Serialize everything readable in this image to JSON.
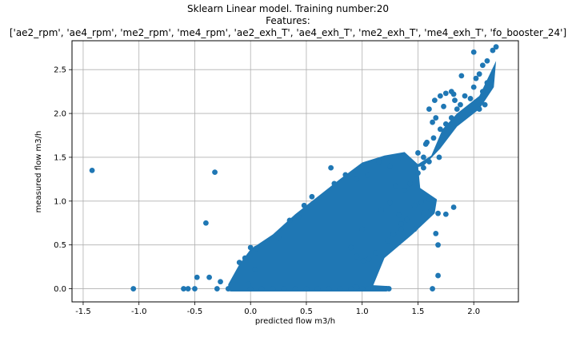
{
  "chart_data": {
    "type": "scatter",
    "title": "Sklearn Linear model. Training number:20",
    "subtitle": "Features:",
    "features_line": "['ae2_rpm', 'ae4_rpm', 'me2_rpm', 'me4_rpm', 'ae2_exh_T', 'ae4_exh_T', 'me2_exh_T', 'me4_exh_T', 'fo_booster_24']",
    "xlabel": "predicted flow m3/h",
    "ylabel": "measured flow m3/h",
    "xlim": [
      -1.6,
      2.4
    ],
    "ylim": [
      -0.15,
      2.83
    ],
    "xticks": [
      "-1.5",
      "-1.0",
      "-0.5",
      "0.0",
      "0.5",
      "1.0",
      "1.5",
      "2.0"
    ],
    "xtick_values": [
      -1.5,
      -1.0,
      -0.5,
      0.0,
      0.5,
      1.0,
      1.5,
      2.0
    ],
    "yticks": [
      "0.0",
      "0.5",
      "1.0",
      "1.5",
      "2.0",
      "2.5"
    ],
    "ytick_values": [
      0.0,
      0.5,
      1.0,
      1.5,
      2.0,
      2.5
    ],
    "grid": true,
    "marker_color": "#1f77b4",
    "series": [
      {
        "points": [
          [
            -1.42,
            1.35
          ],
          [
            -1.05,
            0.0
          ],
          [
            -0.32,
            1.33
          ],
          [
            -0.4,
            0.75
          ],
          [
            -0.6,
            0.0
          ],
          [
            -0.56,
            0.0
          ],
          [
            -0.5,
            0.0
          ],
          [
            -0.48,
            0.13
          ],
          [
            -0.37,
            0.13
          ],
          [
            -0.3,
            0.0
          ],
          [
            -0.27,
            0.08
          ],
          [
            -0.2,
            0.0
          ],
          [
            -0.1,
            0.3
          ],
          [
            -0.05,
            0.35
          ],
          [
            0.0,
            0.0
          ],
          [
            0.0,
            0.47
          ],
          [
            0.1,
            0.0
          ],
          [
            0.2,
            0.0
          ],
          [
            0.3,
            0.0
          ],
          [
            0.4,
            0.0
          ],
          [
            0.5,
            0.0
          ],
          [
            0.6,
            0.0
          ],
          [
            0.7,
            0.0
          ],
          [
            0.8,
            0.0
          ],
          [
            0.9,
            0.0
          ],
          [
            1.0,
            0.0
          ],
          [
            1.1,
            0.0
          ],
          [
            1.2,
            0.0
          ],
          [
            1.24,
            0.0
          ],
          [
            1.63,
            0.0
          ],
          [
            1.68,
            0.15
          ],
          [
            1.68,
            0.5
          ],
          [
            1.66,
            0.63
          ],
          [
            1.55,
            0.86
          ],
          [
            1.62,
            0.9
          ],
          [
            1.75,
            0.85
          ],
          [
            1.82,
            0.93
          ],
          [
            1.68,
            0.86
          ],
          [
            1.35,
            0.74
          ],
          [
            1.28,
            0.62
          ],
          [
            1.23,
            0.55
          ],
          [
            1.35,
            0.68
          ],
          [
            1.47,
            0.68
          ],
          [
            1.12,
            0.41
          ],
          [
            1.06,
            0.34
          ],
          [
            1.01,
            0.32
          ],
          [
            0.95,
            0.37
          ],
          [
            1.47,
            0.95
          ],
          [
            1.53,
            0.98
          ],
          [
            1.6,
            1.02
          ],
          [
            1.17,
            0.9
          ],
          [
            1.33,
            0.84
          ],
          [
            1.4,
            0.79
          ],
          [
            1.25,
            0.98
          ],
          [
            1.3,
            1.17
          ],
          [
            1.38,
            1.12
          ],
          [
            1.43,
            1.2
          ],
          [
            1.5,
            1.32
          ],
          [
            1.55,
            1.38
          ],
          [
            1.6,
            1.45
          ],
          [
            1.69,
            1.5
          ],
          [
            1.58,
            1.67
          ],
          [
            1.64,
            1.72
          ],
          [
            1.7,
            1.82
          ],
          [
            1.75,
            1.88
          ],
          [
            1.8,
            1.95
          ],
          [
            1.85,
            2.05
          ],
          [
            1.6,
            2.05
          ],
          [
            1.65,
            2.15
          ],
          [
            1.7,
            2.2
          ],
          [
            1.75,
            2.23
          ],
          [
            1.8,
            2.25
          ],
          [
            1.83,
            2.15
          ],
          [
            1.88,
            2.1
          ],
          [
            1.92,
            2.2
          ],
          [
            1.97,
            2.17
          ],
          [
            2.0,
            2.3
          ],
          [
            2.02,
            2.4
          ],
          [
            2.05,
            2.45
          ],
          [
            2.08,
            2.25
          ],
          [
            2.12,
            2.35
          ],
          [
            2.15,
            2.38
          ],
          [
            2.12,
            2.6
          ],
          [
            2.17,
            2.72
          ],
          [
            2.2,
            2.76
          ],
          [
            2.08,
            2.55
          ],
          [
            2.0,
            2.7
          ],
          [
            1.89,
            2.43
          ],
          [
            1.82,
            2.22
          ],
          [
            2.05,
            2.05
          ],
          [
            2.1,
            2.1
          ],
          [
            1.73,
            2.08
          ],
          [
            1.66,
            1.95
          ],
          [
            1.57,
            1.65
          ],
          [
            1.63,
            1.9
          ],
          [
            1.5,
            1.55
          ],
          [
            1.45,
            1.42
          ],
          [
            1.55,
            1.5
          ],
          [
            0.72,
            1.38
          ],
          [
            0.75,
            1.2
          ],
          [
            0.85,
            1.3
          ],
          [
            0.55,
            1.05
          ],
          [
            0.48,
            0.95
          ],
          [
            0.43,
            0.82
          ],
          [
            0.35,
            0.78
          ],
          [
            0.25,
            0.58
          ],
          [
            0.15,
            0.52
          ],
          [
            0.1,
            0.49
          ],
          [
            0.05,
            0.46
          ],
          [
            0.04,
            0.22
          ],
          [
            -0.02,
            0.05
          ],
          [
            1.05,
            0.0
          ],
          [
            0.95,
            0.02
          ],
          [
            1.0,
            0.68
          ],
          [
            0.9,
            0.47
          ],
          [
            1.35,
            1.5
          ],
          [
            1.25,
            1.4
          ],
          [
            1.15,
            1.45
          ],
          [
            1.05,
            1.3
          ],
          [
            0.95,
            1.25
          ]
        ]
      }
    ]
  }
}
